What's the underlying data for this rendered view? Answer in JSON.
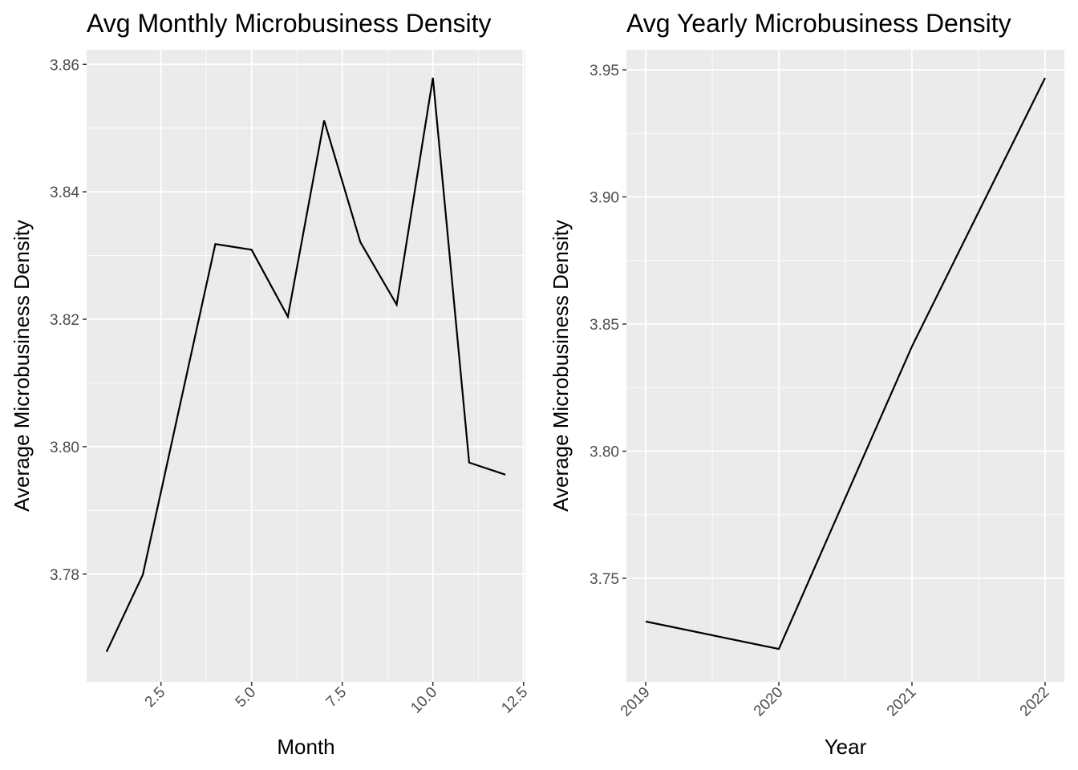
{
  "chart_data": [
    {
      "type": "line",
      "title": "Avg Monthly Microbusiness Density",
      "x_label": "Month",
      "y_label": "Average Microbusiness Density",
      "x": [
        1,
        2,
        3,
        4,
        5,
        6,
        7,
        8,
        9,
        10,
        11,
        12
      ],
      "series": [
        {
          "color": "#000000",
          "values": [
            3.7678,
            3.7799,
            3.8059,
            3.8318,
            3.8309,
            3.8204,
            3.8512,
            3.8321,
            3.8223,
            3.8579,
            3.7975,
            3.7956
          ]
        }
      ],
      "xlim": [
        0.45,
        12.55
      ],
      "xticks": [
        2.5,
        {
          "value": 5,
          "label": "5.0"
        },
        7.5,
        {
          "value": 10,
          "label": "10.0"
        },
        12.5
      ],
      "ylim": [
        3.7631,
        3.8623
      ],
      "yticks": [
        3.78,
        {
          "value": 3.8,
          "label": "3.80"
        },
        3.82,
        3.84,
        3.86
      ],
      "grid": true
    },
    {
      "type": "line",
      "title": "Avg Yearly Microbusiness Density",
      "x_label": "Year",
      "y_label": "Average Microbusiness Density",
      "x": [
        2019,
        2020,
        2021,
        2022
      ],
      "series": [
        {
          "color": "#000000",
          "values": [
            3.733,
            3.7222,
            3.8412,
            3.9468
          ]
        }
      ],
      "xlim": [
        2018.855,
        2022.145
      ],
      "xticks": [
        2019,
        2020,
        2021,
        2022
      ],
      "ylim": [
        3.7093,
        3.9579
      ],
      "yticks": [
        3.75,
        {
          "value": 3.8,
          "label": "3.80"
        },
        3.85,
        {
          "value": 3.9,
          "label": "3.90"
        },
        3.95
      ],
      "grid": true
    }
  ]
}
